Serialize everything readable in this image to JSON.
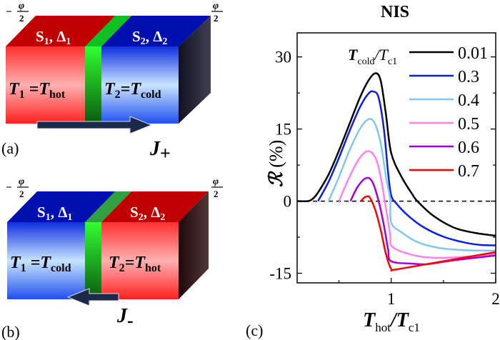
{
  "panel_a": {
    "label": "(a)",
    "phase_left": "−φ/2",
    "phase_left_sign": "−",
    "phase_num": "φ",
    "phase_den": "2",
    "s1": "S",
    "s1_sub": "1",
    "s1_gap": ", Δ",
    "s1_gap_sub": "1",
    "s2": "S",
    "s2_sub": "2",
    "s2_gap": ", Δ",
    "s2_gap_sub": "2",
    "t1": "T",
    "t1_sub": "1",
    "t1_eq": " =T",
    "t1_val": "hot",
    "t2": "T",
    "t2_sub": "2",
    "t2_eq": "=T",
    "t2_val": "cold",
    "current": "J",
    "current_sub": "+",
    "colors": {
      "left": "#ff2020",
      "right": "#1030e0",
      "barrier": "#20c020"
    }
  },
  "panel_b": {
    "label": "(b)",
    "phase_left_sign": "−",
    "phase_num": "φ",
    "phase_den": "2",
    "s1": "S",
    "s1_sub": "1",
    "s1_gap": ", Δ",
    "s1_gap_sub": "1",
    "s2": "S",
    "s2_sub": "2",
    "s2_gap": ", Δ",
    "s2_gap_sub": "2",
    "t1": "T",
    "t1_sub": "1",
    "t1_eq": " =T",
    "t1_val": "cold",
    "t2": "T",
    "t2_sub": "2",
    "t2_eq": "=T",
    "t2_val": "hot",
    "current": "J",
    "current_sub": "-",
    "colors": {
      "left": "#1030e0",
      "right": "#ff2020",
      "barrier": "#20c020"
    }
  },
  "panel_c": {
    "label": "(c)"
  },
  "chart_data": {
    "type": "line",
    "title": "NIS",
    "xlabel": "T_hot/T_c1",
    "xlabel_main": "T",
    "xlabel_sub": "hot",
    "xlabel_div": "/T",
    "xlabel_sub2": "c1",
    "ylabel": "R (%)",
    "ylabel_sym": "ℛ",
    "ylabel_unit": " (%)",
    "xlim": [
      0.1,
      2
    ],
    "ylim": [
      -17,
      35
    ],
    "xticks": [
      "1",
      "2"
    ],
    "xtick_values": [
      1,
      2
    ],
    "xminor": [
      0.5,
      1.5
    ],
    "yticks": [
      "-15",
      "0",
      "15",
      "30"
    ],
    "ytick_values": [
      -15,
      0,
      15,
      30
    ],
    "yminor": [
      -7.5,
      7.5,
      22.5
    ],
    "reference_line": {
      "y": 0,
      "style": "dashed"
    },
    "legend": {
      "title_main": "T",
      "title_sub": "cold",
      "title_div": "/T",
      "title_sub2": "c1",
      "placement": "top-right"
    },
    "series": [
      {
        "name": "0.01",
        "color": "#000000",
        "points": [
          [
            0.1,
            0
          ],
          [
            0.2,
            0
          ],
          [
            0.25,
            0.5
          ],
          [
            0.3,
            1.8
          ],
          [
            0.4,
            5.5
          ],
          [
            0.5,
            10.5
          ],
          [
            0.6,
            16
          ],
          [
            0.7,
            21.5
          ],
          [
            0.78,
            25
          ],
          [
            0.85,
            26.6
          ],
          [
            0.9,
            25
          ],
          [
            0.95,
            18
          ],
          [
            1.0,
            10
          ],
          [
            1.1,
            5
          ],
          [
            1.2,
            1.5
          ],
          [
            1.25,
            0
          ],
          [
            1.4,
            -3
          ],
          [
            1.6,
            -5.5
          ],
          [
            1.8,
            -6.6
          ],
          [
            2,
            -7.2
          ]
        ]
      },
      {
        "name": "0.3",
        "color": "#0a1ee6",
        "points": [
          [
            0.3,
            0
          ],
          [
            0.4,
            4
          ],
          [
            0.5,
            9
          ],
          [
            0.6,
            14.5
          ],
          [
            0.7,
            19.5
          ],
          [
            0.78,
            22.3
          ],
          [
            0.83,
            22.8
          ],
          [
            0.88,
            21.5
          ],
          [
            0.93,
            15
          ],
          [
            0.97,
            6
          ],
          [
            1.0,
            1.2
          ],
          [
            1.05,
            -0.5
          ],
          [
            1.15,
            -2.8
          ],
          [
            1.3,
            -5.3
          ],
          [
            1.5,
            -7.4
          ],
          [
            1.7,
            -8.6
          ],
          [
            1.85,
            -9.1
          ],
          [
            2,
            -9.2
          ]
        ]
      },
      {
        "name": "0.4",
        "color": "#7ec8f0",
        "points": [
          [
            0.4,
            0
          ],
          [
            0.5,
            5
          ],
          [
            0.6,
            10.5
          ],
          [
            0.7,
            15
          ],
          [
            0.78,
            17
          ],
          [
            0.84,
            16.3
          ],
          [
            0.9,
            12
          ],
          [
            0.95,
            5
          ],
          [
            0.99,
            0.5
          ],
          [
            1.0,
            -4.5
          ],
          [
            1.1,
            -6.5
          ],
          [
            1.25,
            -8.5
          ],
          [
            1.45,
            -9.7
          ],
          [
            1.7,
            -10.2
          ],
          [
            2,
            -10.3
          ]
        ]
      },
      {
        "name": "0.5",
        "color": "#ff80f0",
        "points": [
          [
            0.5,
            0
          ],
          [
            0.6,
            5
          ],
          [
            0.7,
            9
          ],
          [
            0.78,
            10.4
          ],
          [
            0.85,
            9
          ],
          [
            0.9,
            5
          ],
          [
            0.95,
            -1.5
          ],
          [
            0.99,
            -7
          ],
          [
            1.0,
            -9.2
          ],
          [
            1.1,
            -10.5
          ],
          [
            1.3,
            -11.6
          ],
          [
            1.5,
            -11.8
          ],
          [
            1.75,
            -11.5
          ],
          [
            2,
            -11
          ]
        ]
      },
      {
        "name": "0.6",
        "color": "#a000e0",
        "points": [
          [
            0.61,
            0
          ],
          [
            0.68,
            3
          ],
          [
            0.76,
            4.8
          ],
          [
            0.82,
            4
          ],
          [
            0.88,
            0
          ],
          [
            0.93,
            -5
          ],
          [
            0.97,
            -10
          ],
          [
            1.0,
            -12.5
          ],
          [
            1.2,
            -13
          ],
          [
            1.35,
            -13.1
          ],
          [
            1.6,
            -12.3
          ],
          [
            2,
            -11.3
          ]
        ]
      },
      {
        "name": "0.7",
        "color": "#ff0000",
        "points": [
          [
            0.71,
            0
          ],
          [
            0.74,
            0.7
          ],
          [
            0.77,
            1
          ],
          [
            0.8,
            0.6
          ],
          [
            0.85,
            -2
          ],
          [
            0.9,
            -6
          ],
          [
            0.95,
            -11
          ],
          [
            1.0,
            -14.1
          ],
          [
            1.05,
            -14.2
          ],
          [
            1.5,
            -12.5
          ],
          [
            2,
            -10.6
          ]
        ]
      }
    ]
  }
}
